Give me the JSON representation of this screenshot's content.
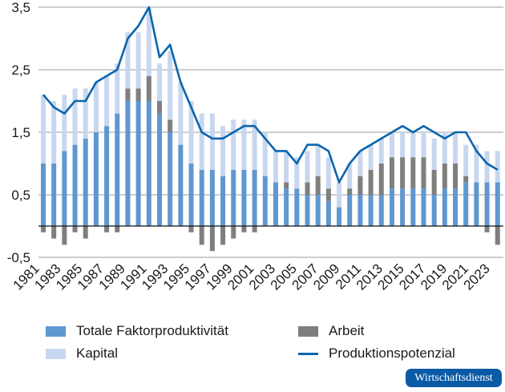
{
  "chart_data": {
    "type": "bar",
    "stacked": true,
    "title": "",
    "xlabel": "",
    "ylabel": "",
    "ylim": [
      -0.5,
      3.5
    ],
    "yticks": [
      -0.5,
      0.5,
      1.5,
      2.5,
      3.5
    ],
    "ytick_labels": [
      "-0,5",
      "0,5",
      "1,5",
      "2,5",
      "3,5"
    ],
    "grid": true,
    "legend_position": "bottom",
    "categories": [
      1981,
      1982,
      1983,
      1984,
      1985,
      1986,
      1987,
      1988,
      1989,
      1990,
      1991,
      1992,
      1993,
      1994,
      1995,
      1996,
      1997,
      1998,
      1999,
      2000,
      2001,
      2002,
      2003,
      2004,
      2005,
      2006,
      2007,
      2008,
      2009,
      2010,
      2011,
      2012,
      2013,
      2014,
      2015,
      2016,
      2017,
      2018,
      2019,
      2020,
      2021,
      2022,
      2023,
      2024
    ],
    "xtick_labels": [
      "1981",
      "1983",
      "1985",
      "1987",
      "1989",
      "1991",
      "1993",
      "1995",
      "1997",
      "1999",
      "2001",
      "2003",
      "2005",
      "2007",
      "2009",
      "2011",
      "2013",
      "2015",
      "2017",
      "2019",
      "2021",
      "2023"
    ],
    "series": [
      {
        "name": "Totale Faktorproduktivität",
        "kind": "bar",
        "color": "#5f97d1",
        "values": [
          1.0,
          1.0,
          1.2,
          1.3,
          1.4,
          1.5,
          1.6,
          1.8,
          2.0,
          2.0,
          2.0,
          1.8,
          1.5,
          1.3,
          1.0,
          0.9,
          0.9,
          0.8,
          0.9,
          0.9,
          0.9,
          0.8,
          0.7,
          0.6,
          0.6,
          0.5,
          0.5,
          0.4,
          0.3,
          0.5,
          0.5,
          0.5,
          0.5,
          0.6,
          0.6,
          0.6,
          0.6,
          0.5,
          0.6,
          0.6,
          0.7,
          0.7,
          0.7,
          0.7
        ]
      },
      {
        "name": "Arbeit",
        "kind": "bar",
        "color": "#7f7f7f",
        "values": [
          -0.1,
          -0.2,
          -0.3,
          -0.1,
          -0.2,
          0.0,
          -0.1,
          -0.1,
          0.2,
          0.2,
          0.4,
          0.2,
          0.2,
          0.0,
          -0.1,
          -0.3,
          -0.4,
          -0.3,
          -0.2,
          -0.1,
          -0.1,
          0.0,
          0.0,
          0.1,
          0.0,
          0.2,
          0.3,
          0.2,
          0.0,
          0.1,
          0.3,
          0.4,
          0.5,
          0.5,
          0.5,
          0.5,
          0.5,
          0.4,
          0.4,
          0.4,
          0.1,
          0.0,
          -0.1,
          -0.3
        ]
      },
      {
        "name": "Kapital",
        "kind": "bar",
        "color": "#c8d7ef",
        "values": [
          1.1,
          1.0,
          0.9,
          0.9,
          0.8,
          0.8,
          0.8,
          0.8,
          0.9,
          0.9,
          1.1,
          0.6,
          1.1,
          1.0,
          1.0,
          0.9,
          0.9,
          0.8,
          0.8,
          0.8,
          0.8,
          0.7,
          0.5,
          0.5,
          0.5,
          0.5,
          0.5,
          0.5,
          0.4,
          0.4,
          0.4,
          0.4,
          0.4,
          0.4,
          0.4,
          0.4,
          0.4,
          0.5,
          0.5,
          0.5,
          0.5,
          0.6,
          0.5,
          0.5
        ]
      },
      {
        "name": "Produktionspotenzial",
        "kind": "line",
        "color": "#0a64ae",
        "values": [
          2.1,
          1.9,
          1.8,
          2.0,
          2.0,
          2.3,
          2.4,
          2.5,
          3.0,
          3.2,
          3.5,
          2.7,
          2.9,
          2.3,
          1.9,
          1.5,
          1.4,
          1.4,
          1.5,
          1.6,
          1.6,
          1.4,
          1.2,
          1.2,
          1.0,
          1.3,
          1.3,
          1.2,
          0.7,
          1.0,
          1.2,
          1.3,
          1.4,
          1.5,
          1.6,
          1.5,
          1.6,
          1.5,
          1.4,
          1.5,
          1.5,
          1.2,
          1.0,
          0.9
        ]
      }
    ]
  },
  "legend": {
    "tfp": "Totale Faktorproduktivität",
    "arbeit": "Arbeit",
    "kapital": "Kapital",
    "potenzial": "Produktionspotenzial"
  },
  "brand": {
    "label": "Wirtschaftsdienst",
    "color": "#0a5aa6"
  }
}
